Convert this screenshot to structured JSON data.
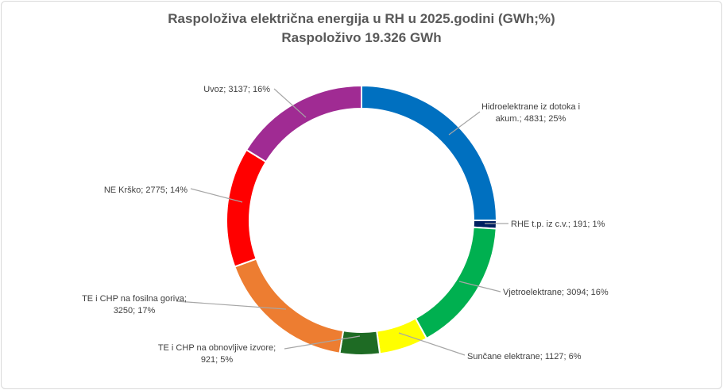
{
  "chart_data": {
    "type": "pie",
    "variant": "doughnut",
    "title": "Raspoloživa električna energija u RH u 2025.godini (GWh;%)",
    "subtitle": "Raspoloživo 19.326 GWh",
    "slices": [
      {
        "label": "Hidroelektrane iz dotoka i akum.",
        "value": 4831,
        "percent": "25%",
        "color": "#0070c0",
        "label_lines": [
          "Hidroelektrane iz dotoka i",
          "akum.; 4831; 25%"
        ]
      },
      {
        "label": "RHE t.p. iz c.v.",
        "value": 191,
        "percent": "1%",
        "color": "#002060",
        "label_lines": [
          "RHE t.p. iz c.v.; 191; 1%"
        ]
      },
      {
        "label": "Vjetroelektrane",
        "value": 3094,
        "percent": "16%",
        "color": "#00b050",
        "label_lines": [
          "Vjetroelektrane; 3094; 16%"
        ]
      },
      {
        "label": "Sunčane elektrane",
        "value": 1127,
        "percent": "6%",
        "color": "#ffff00",
        "label_lines": [
          "Sunčane elektrane; 1127; 6%"
        ]
      },
      {
        "label": "TE i CHP na obnovljive izvore",
        "value": 921,
        "percent": "5%",
        "color": "#1e6b24",
        "label_lines": [
          "TE i CHP na obnovljive izvore;",
          "921; 5%"
        ]
      },
      {
        "label": "TE i CHP na fosilna goriva",
        "value": 3250,
        "percent": "17%",
        "color": "#ed7d31",
        "label_lines": [
          "TE i CHP na fosilna goriva;",
          "3250; 17%"
        ]
      },
      {
        "label": "NE Krško",
        "value": 2775,
        "percent": "14%",
        "color": "#ff0000",
        "label_lines": [
          "NE Krško; 2775; 14%"
        ]
      },
      {
        "label": "Uvoz",
        "value": 3137,
        "percent": "16%",
        "color": "#a02b93",
        "label_lines": [
          "Uvoz; 3137; 16%"
        ]
      }
    ],
    "legend": "none"
  }
}
